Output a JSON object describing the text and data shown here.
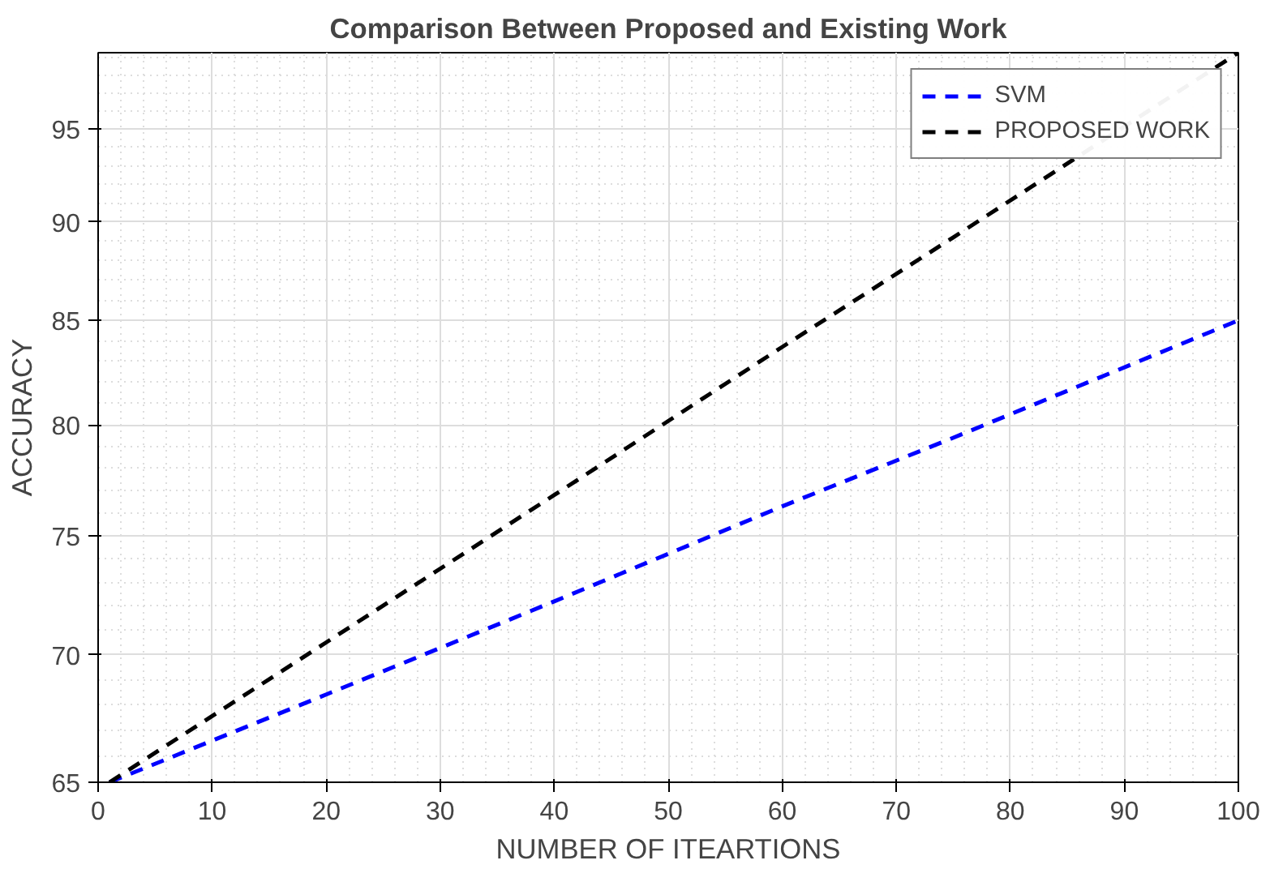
{
  "chart_data": {
    "type": "line",
    "title": "Comparison Between Proposed and Existing Work",
    "xlabel": "NUMBER OF ITEARTIONS",
    "ylabel": "ACCURACY",
    "x": [
      1,
      20,
      40,
      60,
      75,
      100
    ],
    "series": [
      {
        "name": "SVM",
        "color": "#0000ff",
        "values": [
          65,
          68.4,
          72.2,
          76.3,
          79.4,
          85
        ]
      },
      {
        "name": "PROPOSED WORK",
        "color": "#000000",
        "values": [
          65,
          70.5,
          76.8,
          83.7,
          89.2,
          99.3
        ]
      }
    ],
    "xlim": [
      0,
      100
    ],
    "xticks": [
      0,
      10,
      20,
      30,
      40,
      50,
      60,
      70,
      80,
      90,
      100
    ],
    "ylim": [
      65,
      99.3
    ],
    "yticks": [
      65,
      70,
      75,
      80,
      85,
      90,
      95
    ],
    "log": "y",
    "grid": true,
    "legend": "top right",
    "line_style": "dashed",
    "marker": "none"
  }
}
